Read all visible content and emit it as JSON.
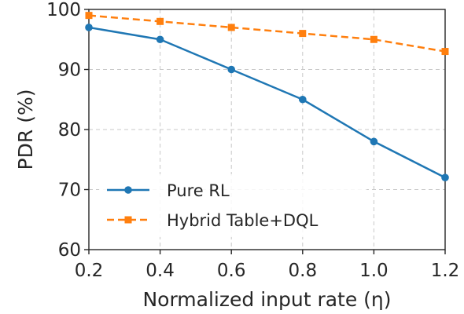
{
  "chart_data": {
    "type": "line",
    "title": "",
    "xlabel": "Normalized input rate (η)",
    "ylabel": "PDR (%)",
    "x": [
      0.2,
      0.4,
      0.6,
      0.8,
      1.0,
      1.2
    ],
    "x_tick_labels": [
      "0.2",
      "0.4",
      "0.6",
      "0.8",
      "1.0",
      "1.2"
    ],
    "y_tick_values": [
      60,
      70,
      80,
      90,
      100
    ],
    "y_tick_labels": [
      "60",
      "70",
      "80",
      "90",
      "100"
    ],
    "xlim": [
      0.2,
      1.2
    ],
    "ylim": [
      60,
      100
    ],
    "grid": true,
    "legend_position": "lower-left",
    "series": [
      {
        "name": "Pure RL",
        "values": [
          97,
          95,
          90,
          85,
          78,
          72
        ],
        "color": "#1f77b4",
        "line_style": "solid",
        "marker": "circle"
      },
      {
        "name": "Hybrid Table+DQL",
        "values": [
          99,
          98,
          97,
          96,
          95,
          93
        ],
        "color": "#ff7f0e",
        "line_style": "dashed",
        "marker": "square"
      }
    ]
  }
}
